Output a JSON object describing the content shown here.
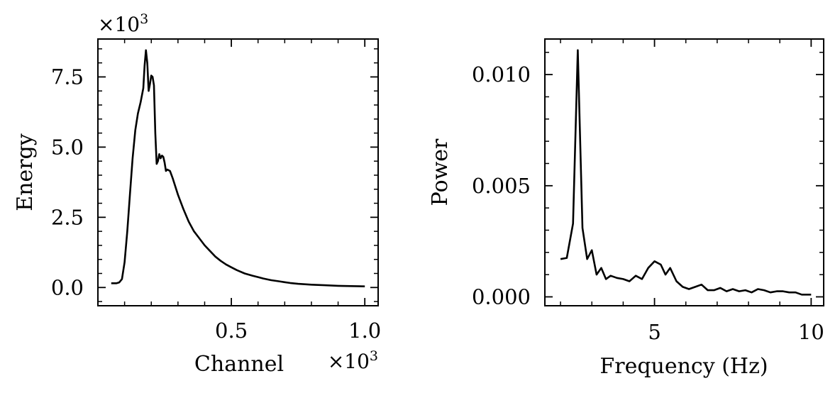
{
  "chart_data": [
    {
      "type": "line",
      "xlabel": "Channel",
      "ylabel": "Energy",
      "x_multiplier": {
        "base": "×10",
        "exp": "3"
      },
      "y_multiplier": {
        "base": "×10",
        "exp": "3"
      },
      "xlim": [
        0.0,
        1.05
      ],
      "ylim": [
        -0.65,
        8.85
      ],
      "xticks": [
        {
          "value": 0.5,
          "label": "0.5"
        },
        {
          "value": 1.0,
          "label": "1.0"
        }
      ],
      "yticks": [
        {
          "value": 0.0,
          "label": "0.0"
        },
        {
          "value": 2.5,
          "label": "2.5"
        },
        {
          "value": 5.0,
          "label": "5.0"
        },
        {
          "value": 7.5,
          "label": "7.5"
        }
      ],
      "x_minor_step": 0.1,
      "y_minor_step": 0.5,
      "grid": false,
      "series": [
        {
          "color": "#000000",
          "x": [
            0.05,
            0.07,
            0.08,
            0.09,
            0.1,
            0.11,
            0.12,
            0.13,
            0.14,
            0.15,
            0.16,
            0.17,
            0.175,
            0.18,
            0.185,
            0.19,
            0.195,
            0.2,
            0.205,
            0.21,
            0.215,
            0.22,
            0.225,
            0.23,
            0.235,
            0.24,
            0.245,
            0.25,
            0.255,
            0.26,
            0.27,
            0.28,
            0.29,
            0.3,
            0.32,
            0.34,
            0.36,
            0.38,
            0.4,
            0.42,
            0.44,
            0.46,
            0.48,
            0.5,
            0.52,
            0.55,
            0.58,
            0.6,
            0.62,
            0.65,
            0.68,
            0.7,
            0.72,
            0.75,
            0.8,
            0.85,
            0.9,
            0.95,
            1.0
          ],
          "y": [
            0.15,
            0.15,
            0.18,
            0.3,
            0.9,
            2.0,
            3.3,
            4.6,
            5.6,
            6.2,
            6.6,
            7.1,
            7.9,
            8.45,
            8.0,
            7.0,
            7.25,
            7.55,
            7.5,
            7.2,
            5.5,
            4.4,
            4.5,
            4.75,
            4.6,
            4.7,
            4.65,
            4.45,
            4.15,
            4.2,
            4.15,
            3.9,
            3.6,
            3.3,
            2.8,
            2.35,
            2.0,
            1.75,
            1.5,
            1.3,
            1.1,
            0.95,
            0.82,
            0.72,
            0.62,
            0.5,
            0.42,
            0.37,
            0.32,
            0.26,
            0.22,
            0.19,
            0.16,
            0.13,
            0.1,
            0.08,
            0.06,
            0.05,
            0.04
          ]
        }
      ]
    },
    {
      "type": "line",
      "xlabel": "Frequency (Hz)",
      "ylabel": "Power",
      "xlim": [
        1.5,
        10.4
      ],
      "ylim": [
        -0.0004,
        0.0116
      ],
      "xticks": [
        {
          "value": 5,
          "label": "5"
        },
        {
          "value": 10,
          "label": "10"
        }
      ],
      "yticks": [
        {
          "value": 0.0,
          "label": "0.000"
        },
        {
          "value": 0.005,
          "label": "0.005"
        },
        {
          "value": 0.01,
          "label": "0.010"
        }
      ],
      "x_minor_step": 1,
      "y_minor_step": 0.001,
      "grid": false,
      "series": [
        {
          "color": "#000000",
          "x": [
            2.0,
            2.2,
            2.4,
            2.55,
            2.7,
            2.85,
            3.0,
            3.15,
            3.3,
            3.45,
            3.6,
            3.8,
            4.0,
            4.2,
            4.4,
            4.6,
            4.8,
            5.0,
            5.2,
            5.35,
            5.5,
            5.7,
            5.9,
            6.1,
            6.3,
            6.5,
            6.7,
            6.9,
            7.1,
            7.3,
            7.5,
            7.7,
            7.9,
            8.1,
            8.3,
            8.5,
            8.7,
            8.9,
            9.1,
            9.3,
            9.5,
            9.7,
            10.0
          ],
          "y": [
            0.0017,
            0.00175,
            0.0033,
            0.0111,
            0.0031,
            0.0017,
            0.0021,
            0.001,
            0.0013,
            0.0008,
            0.00095,
            0.00085,
            0.0008,
            0.0007,
            0.00095,
            0.0008,
            0.0013,
            0.0016,
            0.00145,
            0.001,
            0.0013,
            0.0007,
            0.00045,
            0.00035,
            0.00045,
            0.00055,
            0.0003,
            0.0003,
            0.0004,
            0.00025,
            0.00035,
            0.00025,
            0.0003,
            0.0002,
            0.00035,
            0.0003,
            0.0002,
            0.00025,
            0.00025,
            0.0002,
            0.0002,
            0.0001,
            0.0001
          ]
        }
      ]
    }
  ]
}
